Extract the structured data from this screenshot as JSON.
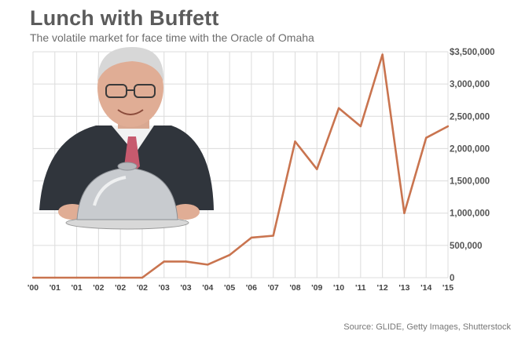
{
  "title": "Lunch with Buffett",
  "subtitle": "The volatile market for face time with the Oracle of Omaha",
  "source": "Source: GLIDE, Getty Images, Shutterstock",
  "colors": {
    "line": "#c9744f",
    "grid": "#dcdcdc",
    "title": "#5b5b5b"
  },
  "photo": {
    "icon": "warren-buffett-photo-with-cloche"
  },
  "chart_data": {
    "type": "line",
    "title": "Lunch with Buffett",
    "subtitle": "The volatile market for face time with the Oracle of Omaha",
    "xlabel": "",
    "ylabel": "",
    "x": [
      "'00",
      "'01",
      "'01",
      "'02",
      "'02",
      "'02",
      "'03",
      "'03",
      "'04",
      "'05",
      "'06",
      "'07",
      "'08",
      "'09",
      "'10",
      "'11",
      "'12",
      "'13",
      "'14",
      "'15"
    ],
    "values": [
      0,
      0,
      0,
      0,
      0,
      0,
      250100,
      250100,
      202100,
      351100,
      620100,
      650100,
      2110100,
      1680300,
      2626311,
      2345678,
      3456789,
      1000100,
      2166766,
      2345678
    ],
    "ylim": [
      0,
      3500000
    ],
    "yticks": [
      0,
      500000,
      1000000,
      1500000,
      2000000,
      2500000,
      3000000,
      3500000
    ],
    "ytick_labels": [
      "0",
      "500,000",
      "1,000,000",
      "1,500,000",
      "2,000,000",
      "2,500,000",
      "3,000,000",
      "$3,500,000"
    ],
    "grid": true,
    "legend": "none"
  }
}
